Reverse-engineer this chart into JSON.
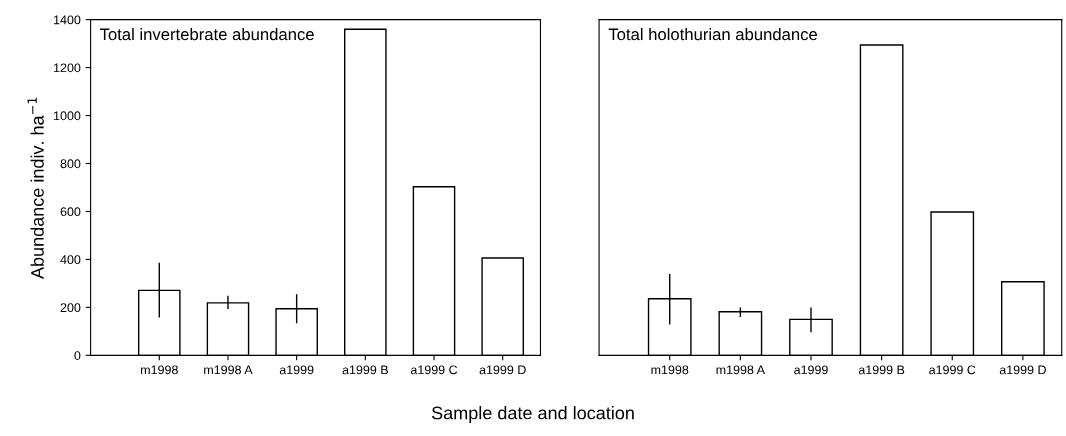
{
  "chart_data": [
    {
      "type": "bar",
      "title": "Total invertebrate abundance",
      "ylabel": "Abundance indiv. ha$^{−1}$",
      "xlabel": "Sample date and location",
      "categories": [
        "m1998",
        "m1998 A",
        "a1999",
        "a1999 B",
        "a1999 C",
        "a1999 D"
      ],
      "values": [
        271,
        219,
        194,
        1360,
        703,
        406
      ],
      "color": "#ffffff",
      "errors": [
        [
          158,
          386
        ],
        [
          193,
          248
        ],
        [
          134,
          255
        ],
        null,
        null,
        null
      ],
      "ylim": [
        0,
        1400
      ],
      "yticks": [
        0,
        200,
        400,
        600,
        800,
        1000,
        1200,
        1400
      ],
      "grid": false,
      "legend": false
    },
    {
      "type": "bar",
      "title": "Total holothurian abundance",
      "categories": [
        "m1998",
        "m1998 A",
        "a1999",
        "a1999 B",
        "a1999 C",
        "a1999 D"
      ],
      "values": [
        236,
        182,
        150,
        1294,
        598,
        307
      ],
      "color": "#ffffff",
      "errors": [
        [
          129,
          339
        ],
        [
          160,
          200
        ],
        [
          96,
          199
        ],
        null,
        null,
        null
      ],
      "ylim": [
        0,
        1400
      ],
      "tick_labels": "x",
      "grid": false,
      "legend": false
    }
  ]
}
